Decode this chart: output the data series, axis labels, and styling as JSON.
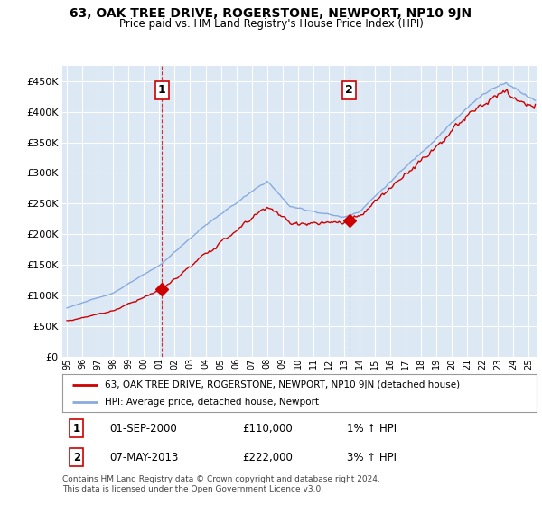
{
  "title": "63, OAK TREE DRIVE, ROGERSTONE, NEWPORT, NP10 9JN",
  "subtitle": "Price paid vs. HM Land Registry's House Price Index (HPI)",
  "yticks": [
    0,
    50000,
    100000,
    150000,
    200000,
    250000,
    300000,
    350000,
    400000,
    450000
  ],
  "ylim": [
    0,
    475000
  ],
  "sale1": {
    "date_num": 2001.17,
    "price": 110000,
    "label": "1"
  },
  "sale2": {
    "date_num": 2013.33,
    "price": 222000,
    "label": "2"
  },
  "legend_line1": "63, OAK TREE DRIVE, ROGERSTONE, NEWPORT, NP10 9JN (detached house)",
  "legend_line2": "HPI: Average price, detached house, Newport",
  "line_color_property": "#cc0000",
  "line_color_hpi": "#88aadd",
  "plot_bg": "#dce9f5",
  "grid_color": "#ffffff",
  "footnote": "Contains HM Land Registry data © Crown copyright and database right 2024.\nThis data is licensed under the Open Government Licence v3.0."
}
